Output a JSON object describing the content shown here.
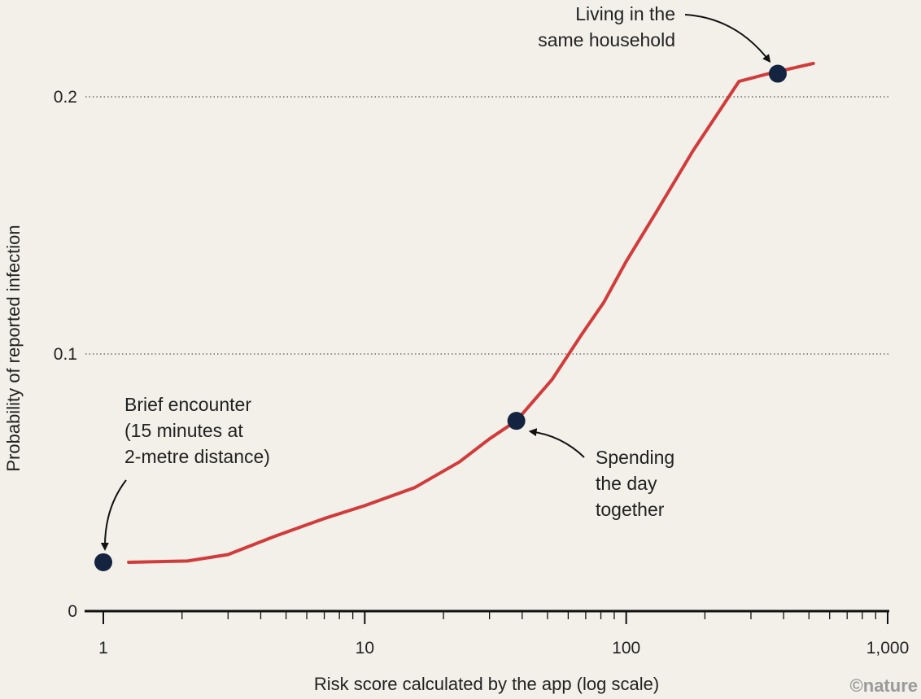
{
  "chart_data": {
    "type": "line",
    "xscale": "log",
    "xlim": [
      1,
      1000
    ],
    "ylim": [
      0,
      0.2
    ],
    "grid": "horizontal-dotted",
    "xlabel": "Risk score calculated by the app (log scale)",
    "ylabel": "Probability of reported infection",
    "xticks": [
      {
        "value": 1,
        "label": "1"
      },
      {
        "value": 10,
        "label": "10"
      },
      {
        "value": 100,
        "label": "100"
      },
      {
        "value": 1000,
        "label": "1,000"
      }
    ],
    "yticks": [
      {
        "value": 0,
        "label": "0"
      },
      {
        "value": 0.1,
        "label": "0.1"
      },
      {
        "value": 0.2,
        "label": "0.2"
      }
    ],
    "line_color": "#d13b3b",
    "point_color": "#14233f",
    "series": [
      {
        "x": [
          1.25,
          2.1,
          3,
          4.5,
          7,
          10,
          15.5,
          23,
          30,
          38,
          52,
          68,
          82,
          100,
          130,
          180,
          270,
          350,
          520
        ],
        "y": [
          0.019,
          0.0195,
          0.022,
          0.029,
          0.036,
          0.041,
          0.048,
          0.058,
          0.067,
          0.074,
          0.09,
          0.108,
          0.12,
          0.136,
          0.155,
          0.179,
          0.206,
          0.209,
          0.213
        ]
      }
    ],
    "highlights": [
      {
        "x": 1,
        "y": 0.019
      },
      {
        "x": 38,
        "y": 0.074
      },
      {
        "x": 380,
        "y": 0.209
      }
    ],
    "annotations": [
      {
        "lines": [
          "Brief encounter",
          "(15 minutes at",
          "2-metre distance)"
        ]
      },
      {
        "lines": [
          "Spending",
          "the day",
          "together"
        ]
      },
      {
        "lines": [
          "Living in the",
          "same household"
        ]
      }
    ]
  },
  "credit": "©nature"
}
